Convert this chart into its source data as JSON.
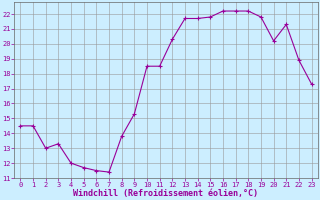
{
  "x": [
    0,
    1,
    2,
    3,
    4,
    5,
    6,
    7,
    8,
    9,
    10,
    11,
    12,
    13,
    14,
    15,
    16,
    17,
    18,
    19,
    20,
    21,
    22,
    23
  ],
  "y": [
    14.5,
    14.5,
    13.0,
    13.3,
    12.0,
    11.7,
    11.5,
    11.4,
    13.8,
    15.3,
    18.5,
    18.5,
    20.3,
    21.7,
    21.7,
    21.8,
    22.2,
    22.2,
    22.2,
    21.8,
    20.2,
    21.3,
    18.9,
    17.3
  ],
  "line_color": "#990099",
  "marker": "+",
  "marker_size": 3,
  "bg_color": "#cceeff",
  "grid_color": "#999999",
  "xlabel": "Windchill (Refroidissement éolien,°C)",
  "xlabel_color": "#990099",
  "tick_color": "#990099",
  "spine_color": "#666666",
  "xlim": [
    -0.5,
    23.5
  ],
  "ylim": [
    11,
    22.8
  ],
  "yticks": [
    11,
    12,
    13,
    14,
    15,
    16,
    17,
    18,
    19,
    20,
    21,
    22
  ],
  "xticks": [
    0,
    1,
    2,
    3,
    4,
    5,
    6,
    7,
    8,
    9,
    10,
    11,
    12,
    13,
    14,
    15,
    16,
    17,
    18,
    19,
    20,
    21,
    22,
    23
  ],
  "tick_fontsize": 5,
  "xlabel_fontsize": 6,
  "linewidth": 0.8,
  "markeredgewidth": 0.8
}
